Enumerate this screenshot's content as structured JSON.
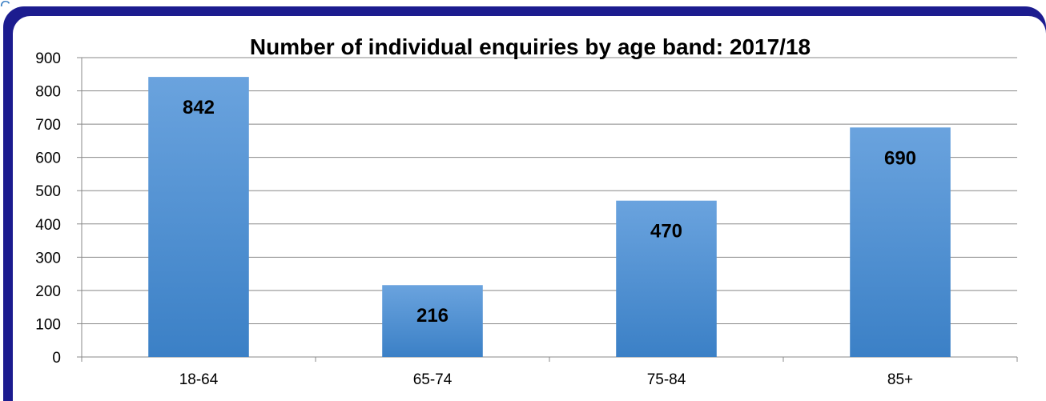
{
  "corner_text": "C",
  "chart_data": {
    "type": "bar",
    "title": "Number of individual enquiries by age band: 2017/18",
    "xlabel": "",
    "ylabel": "",
    "categories": [
      "18-64",
      "65-74",
      "75-84",
      "85+"
    ],
    "values": [
      842,
      216,
      470,
      690
    ],
    "data_labels": [
      "842",
      "216",
      "470",
      "690"
    ],
    "y_ticks": [
      0,
      100,
      200,
      300,
      400,
      500,
      600,
      700,
      800,
      900
    ],
    "ylim": [
      0,
      900
    ],
    "grid": true,
    "legend": "none",
    "colors": {
      "bar_light": "#6aa3de",
      "bar_dark": "#3b80c6",
      "frame": "#1c1c8f",
      "grid": "#888888"
    }
  }
}
